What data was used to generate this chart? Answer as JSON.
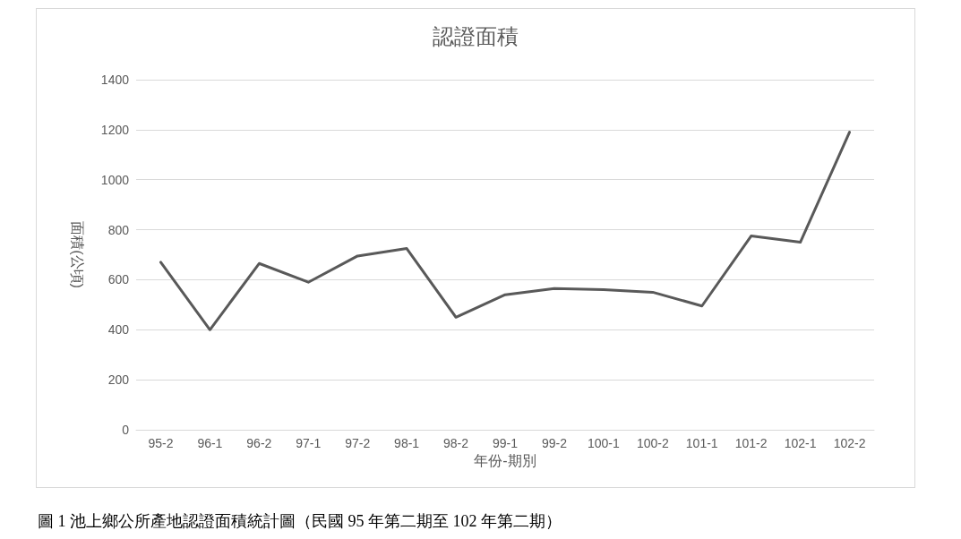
{
  "chart_data": {
    "type": "line",
    "title": "認證面積",
    "xlabel": "年份-期別",
    "ylabel": "面積(公頃)",
    "categories": [
      "95-2",
      "96-1",
      "96-2",
      "97-1",
      "97-2",
      "98-1",
      "98-2",
      "99-1",
      "99-2",
      "100-1",
      "100-2",
      "101-1",
      "101-2",
      "102-1",
      "102-2"
    ],
    "series": [
      {
        "color": "#595959",
        "values": [
          670,
          400,
          665,
          590,
          695,
          725,
          450,
          540,
          565,
          560,
          550,
          495,
          775,
          750,
          1190
        ]
      }
    ],
    "ylim": [
      0,
      1400
    ],
    "yticks": [
      0,
      200,
      400,
      600,
      800,
      1000,
      1200,
      1400
    ],
    "grid": "y",
    "marker": "none",
    "line_style": "solid",
    "annotations": [
      "圖 1 池上鄉公所產地認證面積統計圖（民國 95 年第二期至 102 年第二期）"
    ]
  }
}
